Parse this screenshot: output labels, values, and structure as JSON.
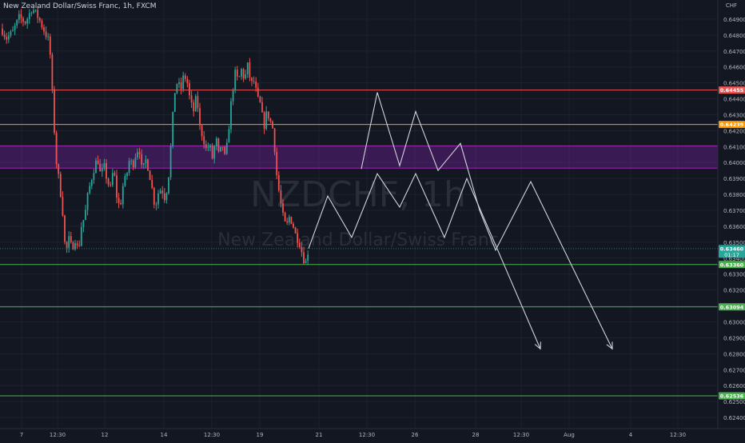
{
  "title": "New Zealand Dollar/Swiss Franc, 1h, FXCM",
  "axis_currency": "CHF",
  "watermark": {
    "symbol": "NZDCHF, 1h",
    "name": "New Zealand Dollar/Swiss Franc"
  },
  "colors": {
    "background": "#131722",
    "up": "#26a69a",
    "down": "#ef5350",
    "axis_text": "#b2b5be"
  },
  "chart_data": {
    "type": "candlestick",
    "ylim": [
      0.6233,
      0.6502
    ],
    "y_ticks": [
      "0.64900",
      "0.64800",
      "0.64700",
      "0.64600",
      "0.64500",
      "0.64400",
      "0.64300",
      "0.64200",
      "0.64100",
      "0.64000",
      "0.63900",
      "0.63800",
      "0.63700",
      "0.63600",
      "0.63500",
      "0.63400",
      "0.63300",
      "0.63200",
      "0.63100",
      "0.63000",
      "0.62900",
      "0.62800",
      "0.62700",
      "0.62600",
      "0.62500",
      "0.62400"
    ],
    "x_ticks": [
      "7",
      "12:30",
      "12",
      "14",
      "12:30",
      "19",
      "21",
      "12:30",
      "26",
      "28",
      "12:30",
      "Aug",
      "4",
      "12:30"
    ],
    "horizontal_lines": [
      {
        "price": "0.64455",
        "color": "#ef5350"
      },
      {
        "price": "0.64239",
        "color": "#ff9800"
      },
      {
        "price": "0.63360",
        "color": "#4caf50"
      },
      {
        "price": "0.63094",
        "color": "#4caf50"
      },
      {
        "price": "0.62536",
        "color": "#4caf50"
      }
    ],
    "zone": {
      "from": 0.63965,
      "to": 0.64105,
      "color": "#7b1fa2"
    },
    "current_price": {
      "price": "0.63460",
      "countdown": "01:17"
    },
    "price_path": [
      [
        0,
        0.6486
      ],
      [
        8,
        0.6478
      ],
      [
        16,
        0.6482
      ],
      [
        24,
        0.6491
      ],
      [
        32,
        0.6488
      ],
      [
        40,
        0.6497
      ],
      [
        48,
        0.6491
      ],
      [
        56,
        0.6482
      ],
      [
        62,
        0.6475
      ],
      [
        66,
        0.6438
      ],
      [
        70,
        0.6402
      ],
      [
        74,
        0.6388
      ],
      [
        78,
        0.6372
      ],
      [
        82,
        0.6342
      ],
      [
        86,
        0.6352
      ],
      [
        90,
        0.6346
      ],
      [
        94,
        0.6352
      ],
      [
        98,
        0.6344
      ],
      [
        102,
        0.6361
      ],
      [
        106,
        0.6366
      ],
      [
        110,
        0.638
      ],
      [
        114,
        0.6389
      ],
      [
        118,
        0.6397
      ],
      [
        122,
        0.6403
      ],
      [
        126,
        0.6391
      ],
      [
        130,
        0.6398
      ],
      [
        134,
        0.6389
      ],
      [
        138,
        0.6383
      ],
      [
        142,
        0.6397
      ],
      [
        146,
        0.6379
      ],
      [
        150,
        0.6371
      ],
      [
        154,
        0.6386
      ],
      [
        158,
        0.6391
      ],
      [
        162,
        0.6402
      ],
      [
        166,
        0.6398
      ],
      [
        170,
        0.6406
      ],
      [
        174,
        0.641
      ],
      [
        178,
        0.6393
      ],
      [
        182,
        0.6402
      ],
      [
        186,
        0.6396
      ],
      [
        190,
        0.6384
      ],
      [
        194,
        0.6372
      ],
      [
        198,
        0.6381
      ],
      [
        202,
        0.6384
      ],
      [
        206,
        0.6378
      ],
      [
        210,
        0.6386
      ],
      [
        214,
        0.6412
      ],
      [
        218,
        0.6443
      ],
      [
        222,
        0.6451
      ],
      [
        226,
        0.6445
      ],
      [
        230,
        0.6455
      ],
      [
        234,
        0.6451
      ],
      [
        238,
        0.6438
      ],
      [
        242,
        0.6432
      ],
      [
        246,
        0.6442
      ],
      [
        250,
        0.6422
      ],
      [
        254,
        0.6416
      ],
      [
        258,
        0.6408
      ],
      [
        262,
        0.6411
      ],
      [
        266,
        0.6402
      ],
      [
        270,
        0.6416
      ],
      [
        274,
        0.6403
      ],
      [
        278,
        0.6412
      ],
      [
        282,
        0.6401
      ],
      [
        286,
        0.6421
      ],
      [
        290,
        0.6442
      ],
      [
        294,
        0.6456
      ],
      [
        298,
        0.6451
      ],
      [
        302,
        0.6458
      ],
      [
        306,
        0.6452
      ],
      [
        310,
        0.6461
      ],
      [
        314,
        0.6449
      ],
      [
        318,
        0.6451
      ],
      [
        322,
        0.644
      ],
      [
        326,
        0.6436
      ],
      [
        330,
        0.6422
      ],
      [
        334,
        0.6432
      ],
      [
        338,
        0.6426
      ],
      [
        342,
        0.642
      ],
      [
        346,
        0.6393
      ],
      [
        350,
        0.6378
      ],
      [
        354,
        0.6366
      ],
      [
        358,
        0.6359
      ],
      [
        362,
        0.6366
      ],
      [
        366,
        0.6362
      ],
      [
        370,
        0.6354
      ],
      [
        374,
        0.6351
      ],
      [
        378,
        0.6343
      ],
      [
        382,
        0.6336
      ],
      [
        386,
        0.6346
      ]
    ],
    "projections": [
      {
        "points": [
          [
            386,
            0.6346
          ],
          [
            410,
            0.6379
          ],
          [
            440,
            0.6353
          ],
          [
            472,
            0.6393
          ],
          [
            500,
            0.6372
          ],
          [
            520,
            0.6393
          ],
          [
            556,
            0.6353
          ],
          [
            584,
            0.639
          ],
          [
            676,
            0.6283
          ]
        ]
      },
      {
        "points": [
          [
            452,
            0.6396
          ],
          [
            472,
            0.6444
          ],
          [
            500,
            0.6398
          ],
          [
            520,
            0.6432
          ],
          [
            548,
            0.6395
          ],
          [
            576,
            0.6412
          ],
          [
            600,
            0.637
          ],
          [
            620,
            0.6345
          ],
          [
            664,
            0.6388
          ],
          [
            766,
            0.6283
          ]
        ]
      }
    ]
  }
}
